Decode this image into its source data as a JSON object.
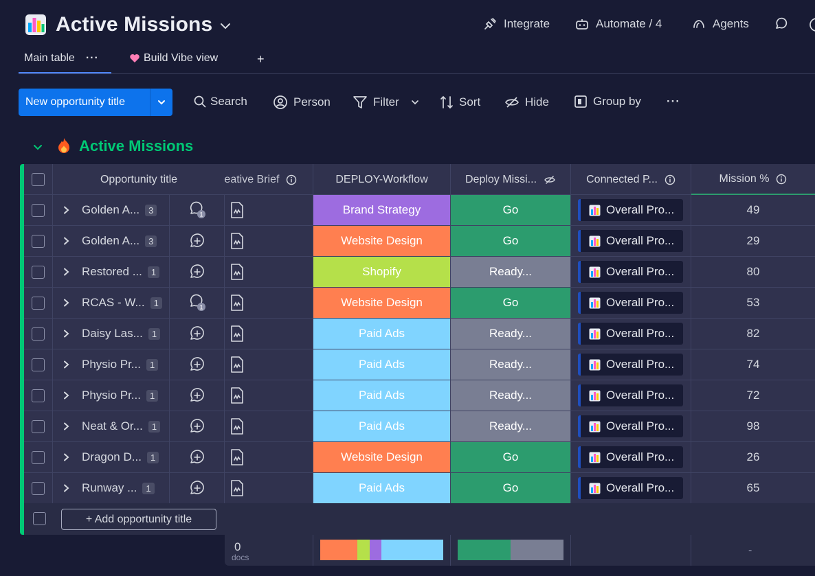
{
  "board": {
    "title": "Active Missions",
    "actions": {
      "integrate": "Integrate",
      "automate": "Automate / 4",
      "agents": "Agents"
    }
  },
  "views": {
    "main": "Main table",
    "vibe": "Build Vibe view",
    "add": "+",
    "more": "···"
  },
  "toolbar": {
    "new_item": "New opportunity title",
    "search": "Search",
    "person": "Person",
    "filter": "Filter",
    "sort": "Sort",
    "hide": "Hide",
    "group_by": "Group by",
    "more": "···"
  },
  "group": {
    "title": "Active Missions",
    "color": "#00c875"
  },
  "columns": {
    "title": "Opportunity title",
    "brief": "Creative Brief",
    "workflow": "DEPLOY-Workflow",
    "deploy": "Deploy Missi...",
    "connected": "Connected P...",
    "mission": "Mission %"
  },
  "rows": [
    {
      "title": "Golden A...",
      "count": "3",
      "updates": "1",
      "workflow": "Brand Strategy",
      "deploy": "Go",
      "connected": "Overall Pro...",
      "mission": "49"
    },
    {
      "title": "Golden A...",
      "count": "3",
      "updates": "",
      "workflow": "Website Design",
      "deploy": "Go",
      "connected": "Overall Pro...",
      "mission": "29"
    },
    {
      "title": "Restored ...",
      "count": "1",
      "updates": "",
      "workflow": "Shopify",
      "deploy": "Ready...",
      "connected": "Overall Pro...",
      "mission": "80"
    },
    {
      "title": "RCAS - W...",
      "count": "1",
      "updates": "1",
      "workflow": "Website Design",
      "deploy": "Go",
      "connected": "Overall Pro...",
      "mission": "53"
    },
    {
      "title": "Daisy Las...",
      "count": "1",
      "updates": "",
      "workflow": "Paid Ads",
      "deploy": "Ready...",
      "connected": "Overall Pro...",
      "mission": "82"
    },
    {
      "title": "Physio Pr...",
      "count": "1",
      "updates": "",
      "workflow": "Paid Ads",
      "deploy": "Ready...",
      "connected": "Overall Pro...",
      "mission": "74"
    },
    {
      "title": "Physio Pr...",
      "count": "1",
      "updates": "",
      "workflow": "Paid Ads",
      "deploy": "Ready...",
      "connected": "Overall Pro...",
      "mission": "72"
    },
    {
      "title": "Neat & Or...",
      "count": "1",
      "updates": "",
      "workflow": "Paid Ads",
      "deploy": "Ready...",
      "connected": "Overall Pro...",
      "mission": "98"
    },
    {
      "title": "Dragon D...",
      "count": "1",
      "updates": "",
      "workflow": "Website Design",
      "deploy": "Go",
      "connected": "Overall Pro...",
      "mission": "26"
    },
    {
      "title": "Runway ...",
      "count": "1",
      "updates": "",
      "workflow": "Paid Ads",
      "deploy": "Go",
      "connected": "Overall Pro...",
      "mission": "65"
    }
  ],
  "status_colors": {
    "Brand Strategy": "#9d6ce0",
    "Website Design": "#ff7f50",
    "Shopify": "#b5e04a",
    "Paid Ads": "#80d4ff",
    "Go": "#2c9c6e",
    "Ready...": "#797e93"
  },
  "add_item": "+ Add opportunity title",
  "summary": {
    "docs_value": "0",
    "docs_unit": "docs",
    "mission": "-",
    "workflow_dist": [
      {
        "label": "Website Design",
        "share": 0.3
      },
      {
        "label": "Shopify",
        "share": 0.1
      },
      {
        "label": "Brand Strategy",
        "share": 0.1
      },
      {
        "label": "Paid Ads",
        "share": 0.5
      }
    ],
    "deploy_dist": [
      {
        "label": "Go",
        "share": 0.5
      },
      {
        "label": "Ready...",
        "share": 0.5
      }
    ]
  }
}
